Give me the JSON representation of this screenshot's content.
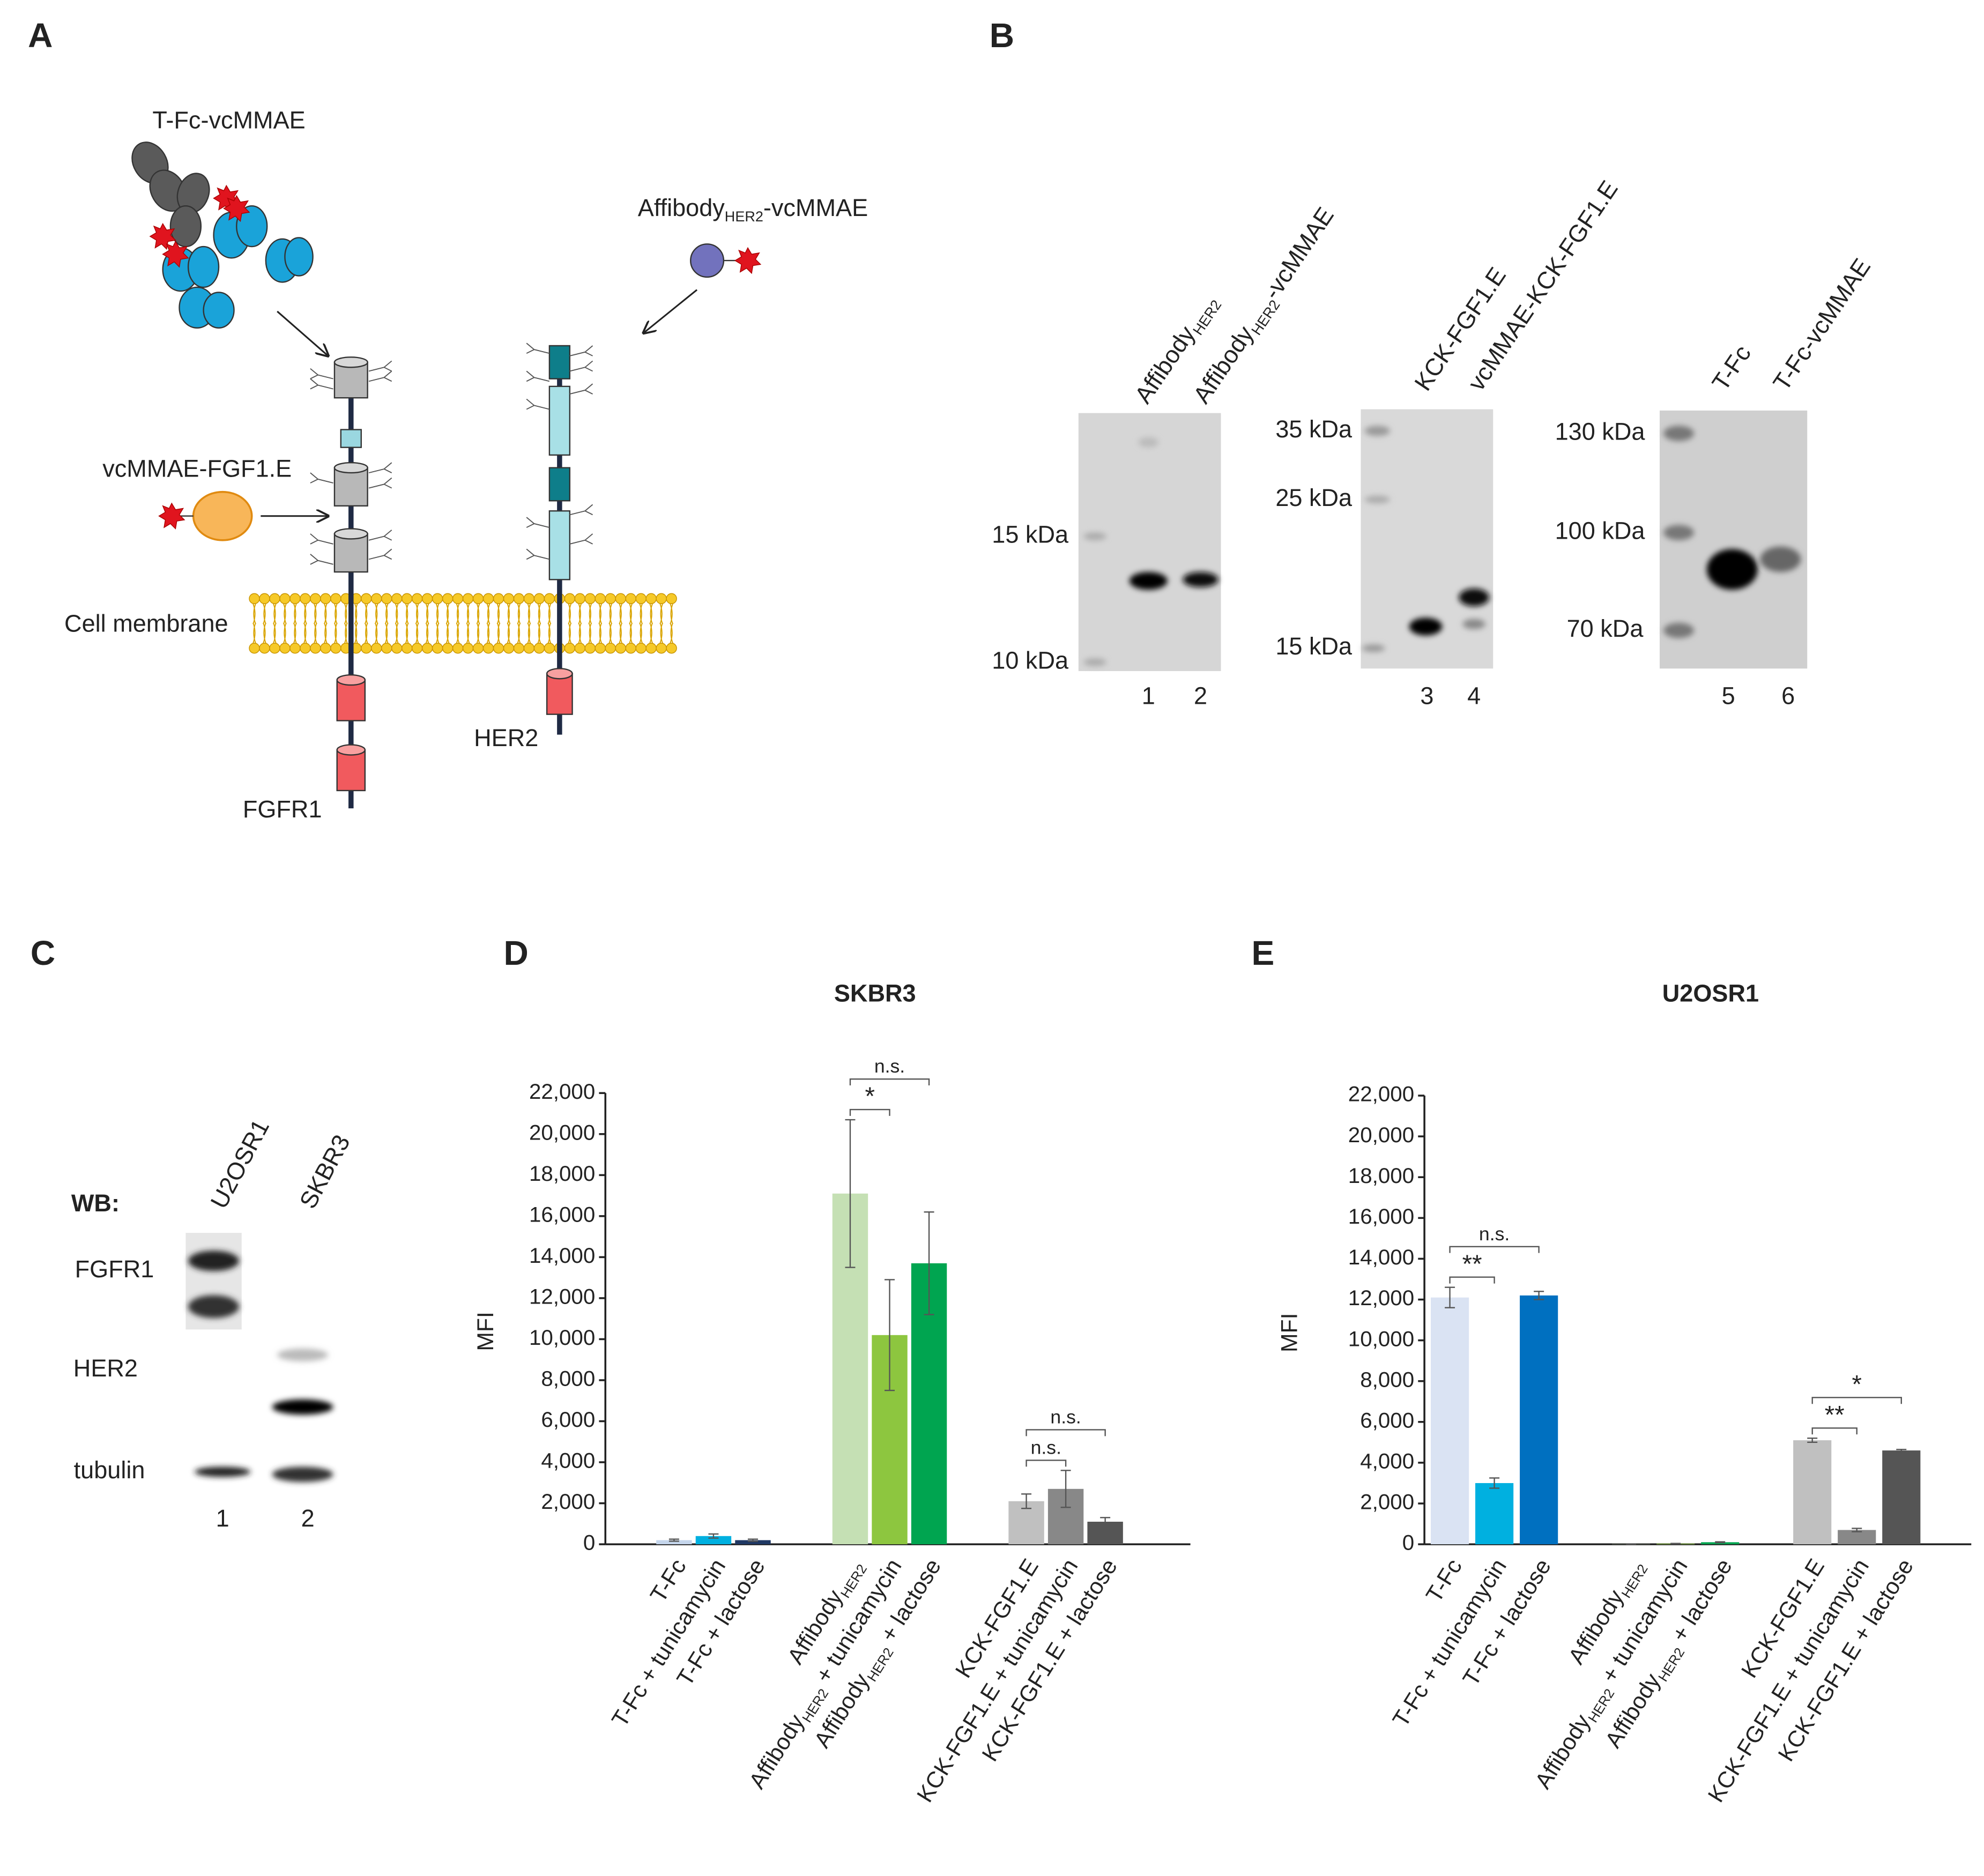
{
  "panel_letters": [
    "A",
    "B",
    "C",
    "D",
    "E"
  ],
  "panel_a": {
    "labels": {
      "tfc_vcmmae": "T-Fc-vcMMAE",
      "affibody_vcmmae": "AffibodyHER2-vcMMAE",
      "vcmmae_fgf": "vcMMAE-FGF1.E",
      "membrane": "Cell membrane",
      "her2": "HER2",
      "fgfr1": "FGFR1"
    }
  },
  "panel_b": {
    "lanes": [
      "AffibodyHER2",
      "AffibodyHER2-vcMMAE",
      "KCK-FGF1.E",
      "vcMMAE-KCK-FGF1.E",
      "T-Fc",
      "T-Fc-vcMMAE"
    ],
    "lane_numbers": [
      "1",
      "2",
      "3",
      "4",
      "5",
      "6"
    ],
    "markers_gel1": [
      "15 kDa",
      "10 kDa"
    ],
    "markers_gel2": [
      "35 kDa",
      "25 kDa",
      "15 kDa"
    ],
    "markers_gel3": [
      "130 kDa",
      "100 kDa",
      "70 kDa"
    ]
  },
  "panel_c": {
    "heading": "WB:",
    "lanes": [
      "U2OSR1",
      "SKBR3"
    ],
    "rows": [
      "FGFR1",
      "HER2",
      "tubulin"
    ],
    "lane_numbers": [
      "1",
      "2"
    ]
  },
  "chart_data": [
    {
      "type": "bar",
      "title": "SKBR3",
      "ylabel": "MFI",
      "categories": [
        "T-Fc",
        "T-Fc + tunicamycin",
        "T-Fc + lactose",
        "AffibodyHER2",
        "AffibodyHER2 + tunicamycin",
        "AffibodyHER2 + lactose",
        "KCK-FGF1.E",
        "KCK-FGF1.E + tunicamycin",
        "KCK-FGF1.E + lactose"
      ],
      "values": [
        200,
        400,
        200,
        17100,
        10200,
        13700,
        2100,
        2700,
        1100
      ],
      "errors": [
        50,
        100,
        50,
        3600,
        2700,
        2500,
        350,
        900,
        200
      ],
      "colors": [
        "#c5d6ec",
        "#00b0e0",
        "#1f3864",
        "#c5e0b4",
        "#8dc63f",
        "#00a550",
        "#c0c0c0",
        "#888888",
        "#555555"
      ],
      "ylim": [
        0,
        22000
      ],
      "yticks": [
        0,
        {
          "value": 2000,
          "label": "2,000"
        },
        {
          "value": 4000,
          "label": "4,000"
        },
        {
          "value": 6000,
          "label": "6,000"
        },
        {
          "value": 8000,
          "label": "8,000"
        },
        {
          "value": 10000,
          "label": "10,000"
        },
        {
          "value": 12000,
          "label": "12,000"
        },
        {
          "value": 14000,
          "label": "14,000"
        },
        {
          "value": 16000,
          "label": "16,000"
        },
        {
          "value": 18000,
          "label": "18,000"
        },
        {
          "value": 20000,
          "label": "20,000"
        },
        {
          "value": 22000,
          "label": "22,000"
        }
      ],
      "annotations": [
        {
          "label": "*",
          "from": 3,
          "to": 4
        },
        {
          "label": "n.s.",
          "from": 3,
          "to": 5
        },
        {
          "label": "n.s.",
          "from": 6,
          "to": 7
        },
        {
          "label": "n.s.",
          "from": 6,
          "to": 8
        }
      ]
    },
    {
      "type": "bar",
      "title": "U2OSR1",
      "ylabel": "MFI",
      "categories": [
        "T-Fc",
        "T-Fc + tunicamycin",
        "T-Fc + lactose",
        "AffibodyHER2",
        "AffibodyHER2 + tunicamycin",
        "AffibodyHER2 + lactose",
        "KCK-FGF1.E",
        "KCK-FGF1.E + tunicamycin",
        "KCK-FGF1.E + lactose"
      ],
      "values": [
        12100,
        3000,
        12200,
        10,
        30,
        100,
        5100,
        700,
        4600
      ],
      "errors": [
        500,
        250,
        200,
        5,
        10,
        20,
        100,
        80,
        50
      ],
      "colors": [
        "#dae3f3",
        "#00b0e0",
        "#0070c0",
        "#c5e0b4",
        "#8dc63f",
        "#00a550",
        "#c0c0c0",
        "#888888",
        "#555555"
      ],
      "ylim": [
        0,
        22000
      ],
      "yticks": [
        0,
        {
          "value": 2000,
          "label": "2,000"
        },
        {
          "value": 4000,
          "label": "4,000"
        },
        {
          "value": 6000,
          "label": "6,000"
        },
        {
          "value": 8000,
          "label": "8,000"
        },
        {
          "value": 10000,
          "label": "10,000"
        },
        {
          "value": 12000,
          "label": "12,000"
        },
        {
          "value": 14000,
          "label": "14,000"
        },
        {
          "value": 16000,
          "label": "16,000"
        },
        {
          "value": 18000,
          "label": "18,000"
        },
        {
          "value": 20000,
          "label": "20,000"
        },
        {
          "value": 22000,
          "label": "22,000"
        }
      ],
      "annotations": [
        {
          "label": "**",
          "from": 0,
          "to": 1
        },
        {
          "label": "n.s.",
          "from": 0,
          "to": 2
        },
        {
          "label": "**",
          "from": 6,
          "to": 7
        },
        {
          "label": "*",
          "from": 6,
          "to": 8
        }
      ]
    }
  ]
}
